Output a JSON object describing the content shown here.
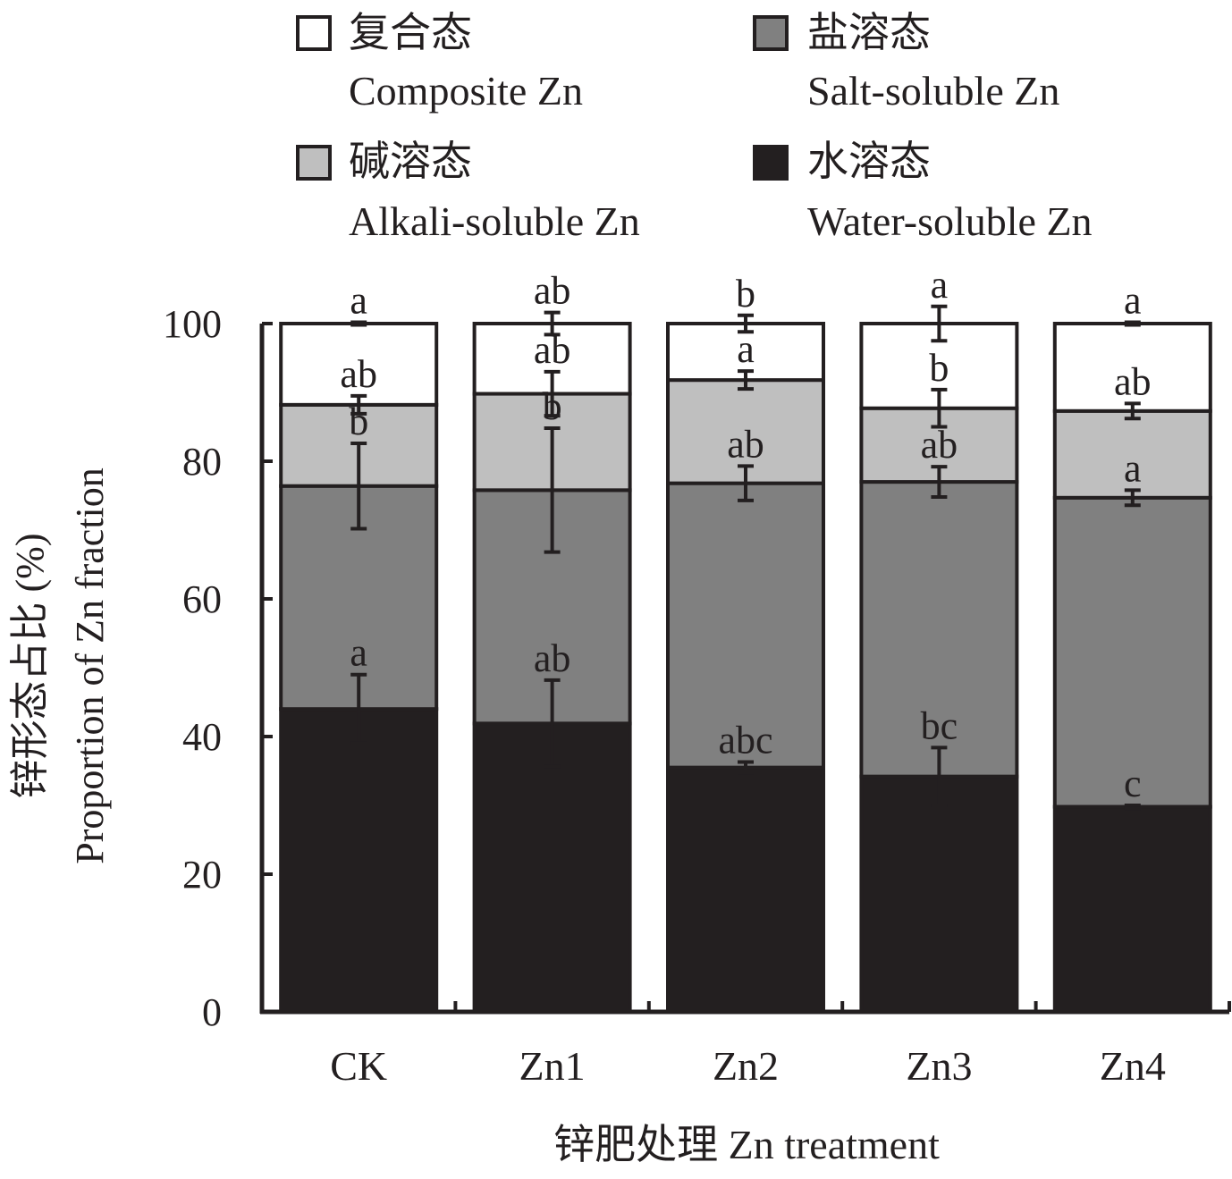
{
  "chart_data": {
    "type": "bar",
    "stacked": true,
    "xlabel": "锌肥处理 Zn treatment",
    "ylabel": [
      "锌形态占比 (%)",
      "Proportion of Zn fraction"
    ],
    "ylim": [
      0,
      100
    ],
    "yticks": [
      0,
      20,
      40,
      60,
      80,
      100
    ],
    "categories": [
      "CK",
      "Zn1",
      "Zn2",
      "Zn3",
      "Zn4"
    ],
    "legend": {
      "position": "top",
      "items": [
        {
          "cn": "复合态",
          "en": "Composite Zn",
          "color": "#ffffff"
        },
        {
          "cn": "盐溶态",
          "en": "Salt-soluble Zn",
          "color": "#808080"
        },
        {
          "cn": "碱溶态",
          "en": "Alkali-soluble Zn",
          "color": "#bfbfbf"
        },
        {
          "cn": "水溶态",
          "en": "Water-soluble Zn",
          "color": "#231f20"
        }
      ]
    },
    "series": [
      {
        "name": "水溶态 Water-soluble Zn",
        "color": "#231f20",
        "values": [
          44.0,
          41.9,
          35.5,
          34.2,
          29.8
        ],
        "errors": [
          5,
          6.3,
          0.8,
          4.2,
          0.2
        ],
        "letters": [
          "a",
          "ab",
          "abc",
          "bc",
          "c"
        ]
      },
      {
        "name": "盐溶态 Salt-soluble Zn",
        "color": "#808080",
        "values": [
          32.4,
          33.9,
          41.3,
          42.8,
          44.9
        ],
        "errors": [
          6.2,
          9,
          2.5,
          2.2,
          1.1
        ],
        "letters": [
          "b",
          "b",
          "ab",
          "ab",
          "a"
        ]
      },
      {
        "name": "碱溶态 Alkali-soluble Zn",
        "color": "#bfbfbf",
        "values": [
          11.8,
          14.0,
          15.0,
          10.7,
          12.6
        ],
        "errors": [
          1.3,
          3.2,
          1.3,
          2.7,
          1.1
        ],
        "letters": [
          "ab",
          "ab",
          "a",
          "b",
          "ab"
        ]
      },
      {
        "name": "复合态 Composite Zn",
        "color": "#ffffff",
        "values": [
          11.8,
          10.2,
          8.2,
          12.3,
          12.7
        ],
        "errors": [
          0.2,
          1.6,
          1.2,
          2.5,
          0.2
        ],
        "letters": [
          "a",
          "ab",
          "b",
          "a",
          "a"
        ]
      }
    ]
  }
}
